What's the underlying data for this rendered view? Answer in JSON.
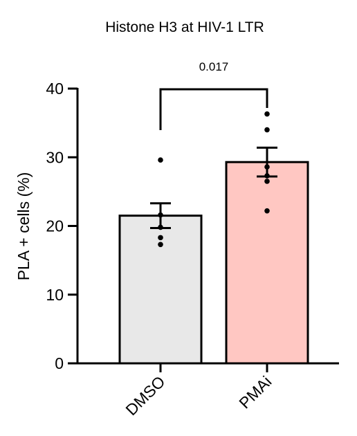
{
  "chart_data": {
    "type": "bar",
    "title": "Histone H3 at HIV-1 LTR",
    "xlabel": "",
    "ylabel": "PLA + cells (%)",
    "ylim": [
      0,
      40
    ],
    "yticks": [
      0,
      10,
      20,
      30,
      40
    ],
    "grid": false,
    "categories": [
      "DMSO",
      "PMAi"
    ],
    "values": [
      21.5,
      29.3
    ],
    "sem": [
      1.8,
      2.1
    ],
    "points": [
      [
        29.6,
        21.6,
        19.8,
        18.3,
        17.3
      ],
      [
        36.3,
        34.0,
        28.6,
        27.3,
        26.5,
        22.2
      ]
    ],
    "bar_colors": [
      "#e8e8e8",
      "#ffc7c2"
    ],
    "comparison": {
      "from": "DMSO",
      "to": "PMAi",
      "label": "0.017"
    }
  }
}
